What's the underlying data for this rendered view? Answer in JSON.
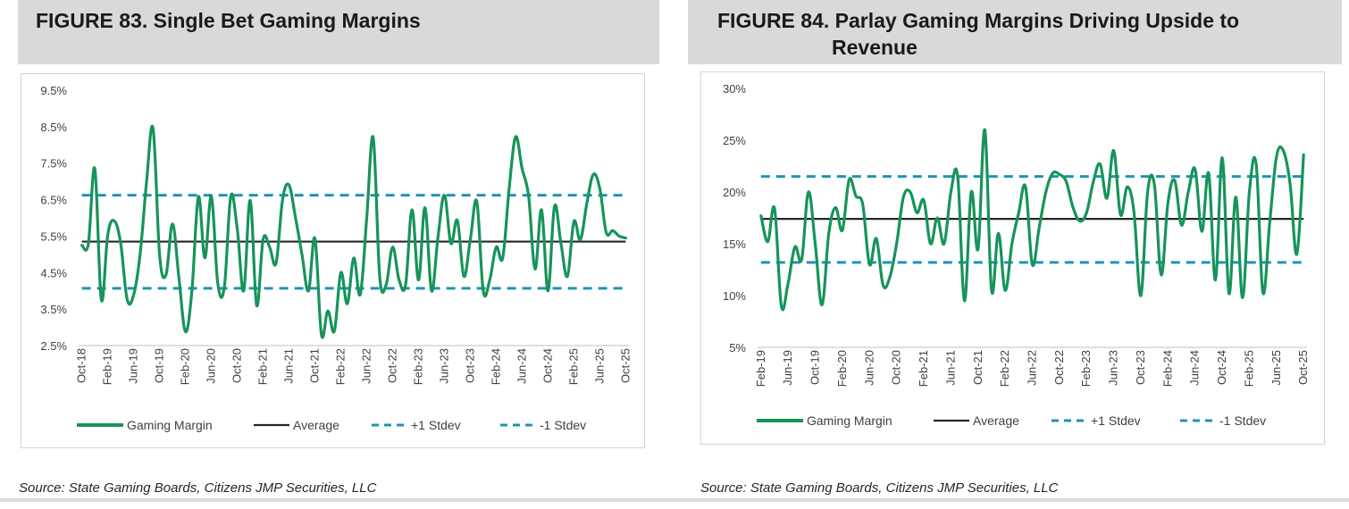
{
  "colors": {
    "gaming_margin": "#16945a",
    "average": "#262626",
    "stdev": "#1f93b5",
    "axis": "#bfbfbf"
  },
  "chart_data": [
    {
      "id": "fig83",
      "type": "line",
      "figure_label": "FIGURE 83.",
      "title": "Single Bet Gaming Margins",
      "title_line2": "",
      "source": "Source: State Gaming Boards, Citizens JMP Securities, LLC",
      "ylim": [
        0.025,
        0.095
      ],
      "yticks": [
        0.025,
        0.035,
        0.045,
        0.055,
        0.065,
        0.075,
        0.085,
        0.095
      ],
      "ytick_labels": [
        "2.5%",
        "3.5%",
        "4.5%",
        "5.5%",
        "6.5%",
        "7.5%",
        "8.5%",
        "9.5%"
      ],
      "n_points": 85,
      "xtick_labels": [
        "Oct-18",
        "Feb-19",
        "Jun-19",
        "Oct-19",
        "Feb-20",
        "Jun-20",
        "Oct-20",
        "Feb-21",
        "Jun-21",
        "Oct-21",
        "Feb-22",
        "Jun-22",
        "Oct-22",
        "Feb-23",
        "Jun-23",
        "Oct-23",
        "Feb-24",
        "Jun-24",
        "Oct-24",
        "Feb-25",
        "Jun-25",
        "Oct-25"
      ],
      "xtick_index": [
        0,
        4,
        8,
        12,
        16,
        20,
        24,
        28,
        32,
        36,
        40,
        44,
        48,
        52,
        56,
        60,
        64,
        68,
        72,
        76,
        80,
        84
      ],
      "series": [
        {
          "name": "Gaming Margin",
          "values": [
            0.0525,
            0.0529,
            0.0735,
            0.0376,
            0.0553,
            0.0592,
            0.053,
            0.0376,
            0.0389,
            0.05,
            0.07,
            0.0845,
            0.05,
            0.0444,
            0.0583,
            0.0435,
            0.0288,
            0.04,
            0.0658,
            0.049,
            0.0659,
            0.042,
            0.041,
            0.0659,
            0.057,
            0.04,
            0.0648,
            0.036,
            0.0541,
            0.052,
            0.0476,
            0.065,
            0.069,
            0.06,
            0.05,
            0.04,
            0.0544,
            0.028,
            0.0345,
            0.029,
            0.045,
            0.0365,
            0.049,
            0.039,
            0.06,
            0.082,
            0.044,
            0.0417,
            0.052,
            0.043,
            0.0417,
            0.0622,
            0.043,
            0.0628,
            0.04,
            0.0546,
            0.0662,
            0.053,
            0.0593,
            0.044,
            0.054,
            0.0645,
            0.04,
            0.043,
            0.052,
            0.049,
            0.068,
            0.0822,
            0.0735,
            0.066,
            0.046,
            0.0622,
            0.04,
            0.0632,
            0.053,
            0.044,
            0.059,
            0.054,
            0.064,
            0.0719,
            0.068,
            0.056,
            0.0565,
            0.055,
            0.0545
          ]
        },
        {
          "name": "Average",
          "constant": 0.0535
        },
        {
          "name": "+1 Stdev",
          "constant": 0.0662
        },
        {
          "name": "-1 Stdev",
          "constant": 0.0407
        }
      ]
    },
    {
      "id": "fig84",
      "type": "line",
      "figure_label": "FIGURE 84.",
      "title": "Parlay Gaming Margins Driving Upside to",
      "title_line2": "Revenue",
      "source": "Source: State Gaming Boards, Citizens JMP Securities, LLC",
      "ylim": [
        0.05,
        0.3
      ],
      "yticks": [
        0.05,
        0.1,
        0.15,
        0.2,
        0.25,
        0.3
      ],
      "ytick_labels": [
        "5%",
        "10%",
        "15%",
        "20%",
        "25%",
        "30%"
      ],
      "n_points": 81,
      "xtick_labels": [
        "Feb-19",
        "Jun-19",
        "Oct-19",
        "Feb-20",
        "Jun-20",
        "Oct-20",
        "Feb-21",
        "Jun-21",
        "Oct-21",
        "Feb-22",
        "Jun-22",
        "Oct-22",
        "Feb-23",
        "Jun-23",
        "Oct-23",
        "Feb-24",
        "Jun-24",
        "Oct-24",
        "Feb-25",
        "Jun-25",
        "Oct-25"
      ],
      "xtick_index": [
        0,
        4,
        8,
        12,
        16,
        20,
        24,
        28,
        32,
        36,
        40,
        44,
        48,
        52,
        56,
        60,
        64,
        68,
        72,
        76,
        80
      ],
      "series": [
        {
          "name": "Gaming Margin",
          "values": [
            0.177,
            0.152,
            0.184,
            0.09,
            0.112,
            0.147,
            0.135,
            0.2,
            0.15,
            0.091,
            0.16,
            0.185,
            0.163,
            0.212,
            0.196,
            0.188,
            0.13,
            0.155,
            0.11,
            0.118,
            0.15,
            0.195,
            0.2,
            0.18,
            0.192,
            0.15,
            0.175,
            0.15,
            0.2,
            0.215,
            0.095,
            0.2,
            0.145,
            0.26,
            0.105,
            0.16,
            0.105,
            0.15,
            0.18,
            0.205,
            0.13,
            0.165,
            0.2,
            0.218,
            0.217,
            0.21,
            0.185,
            0.172,
            0.18,
            0.21,
            0.227,
            0.194,
            0.24,
            0.178,
            0.205,
            0.18,
            0.1,
            0.2,
            0.207,
            0.12,
            0.19,
            0.211,
            0.168,
            0.2,
            0.222,
            0.162,
            0.218,
            0.115,
            0.233,
            0.102,
            0.195,
            0.098,
            0.2,
            0.227,
            0.103,
            0.17,
            0.234,
            0.24,
            0.208,
            0.14,
            0.236
          ]
        },
        {
          "name": "Average",
          "constant": 0.174
        },
        {
          "name": "+1 Stdev",
          "constant": 0.215
        },
        {
          "name": "-1 Stdev",
          "constant": 0.132
        }
      ]
    }
  ],
  "legend": [
    "Gaming Margin",
    "Average",
    "+1 Stdev",
    "-1 Stdev"
  ]
}
